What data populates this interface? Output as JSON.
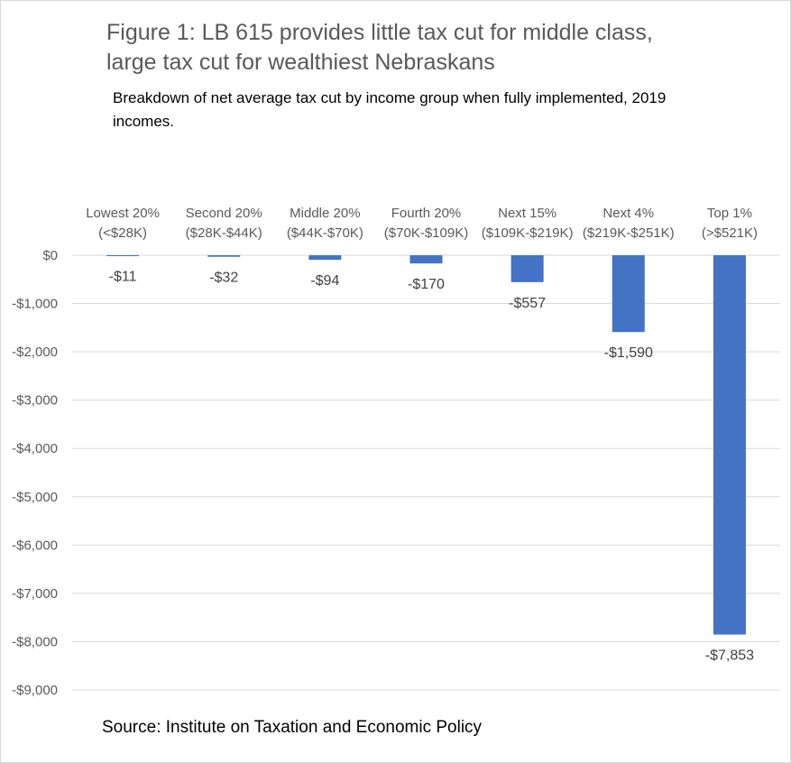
{
  "title_line1": "Figure 1: LB 615 provides little tax cut for middle class,",
  "title_line2": "large tax cut for wealthiest Nebraskans",
  "subtitle": "Breakdown of net average tax cut by income group when fully implemented, 2019 incomes.",
  "source": "Source: Institute on Taxation and Economic Policy",
  "chart_data": {
    "type": "bar",
    "title": "Figure 1: LB 615 provides little tax cut for middle class, large tax cut for wealthiest Nebraskans",
    "subtitle": "Breakdown of net average tax cut by income group when fully implemented, 2019 incomes.",
    "categories": [
      [
        "Lowest 20%",
        "(<$28K)"
      ],
      [
        "Second 20%",
        "($28K-$44K)"
      ],
      [
        "Middle 20%",
        "($44K-$70K)"
      ],
      [
        "Fourth 20%",
        "($70K-$109K)"
      ],
      [
        "Next 15%",
        "($109K-$219K)"
      ],
      [
        "Next 4%",
        "($219K-$251K)"
      ],
      [
        "Top 1%",
        "(>$521K)"
      ]
    ],
    "values": [
      -11,
      -32,
      -94,
      -170,
      -557,
      -1590,
      -7853
    ],
    "data_labels": [
      "-$11",
      "-$32",
      "-$94",
      "-$170",
      "-$557",
      "-$1,590",
      "-$7,853"
    ],
    "ylim": [
      -9000,
      0
    ],
    "yticks": [
      0,
      -1000,
      -2000,
      -3000,
      -4000,
      -5000,
      -6000,
      -7000,
      -8000,
      -9000
    ],
    "ytick_labels": [
      "$0",
      "-$1,000",
      "-$2,000",
      "-$3,000",
      "-$4,000",
      "-$5,000",
      "-$6,000",
      "-$7,000",
      "-$8,000",
      "-$9,000"
    ],
    "category_axis_position": "top",
    "grid": true,
    "legend": "none",
    "bar_color": "#4472c4",
    "grid_color": "#d9d9d9"
  }
}
